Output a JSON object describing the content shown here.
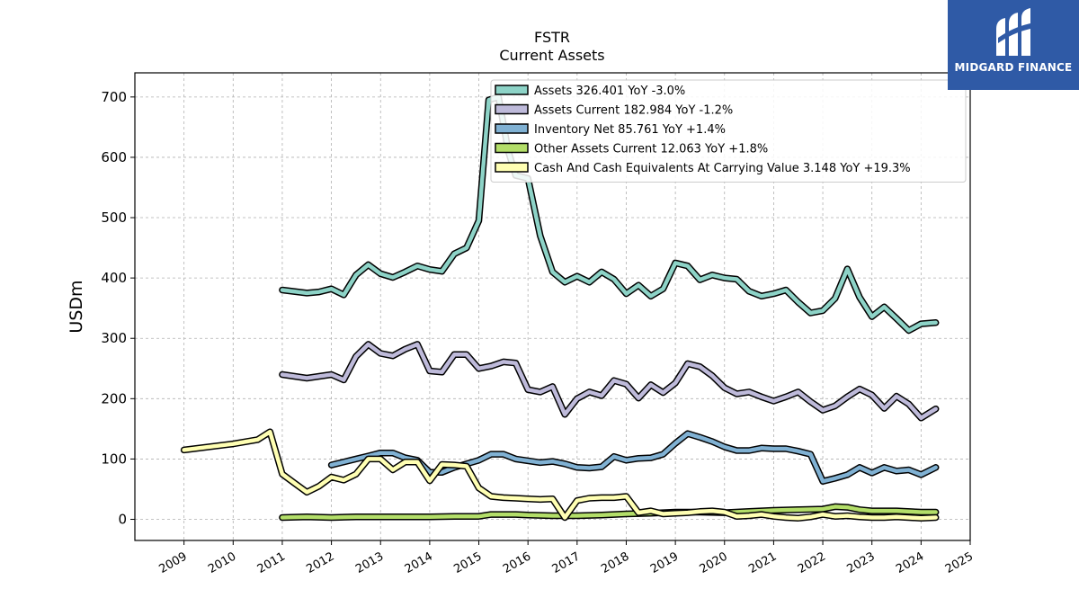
{
  "chart_data": {
    "type": "line",
    "title": "FSTR",
    "subtitle": "Current  Assets",
    "ylabel": "USDm",
    "xlabel": "",
    "ylim": [
      -35,
      740
    ],
    "xlim": [
      2008.0,
      2025.0
    ],
    "yticks": [
      0,
      100,
      200,
      300,
      400,
      500,
      600,
      700
    ],
    "xticks": [
      2009,
      2010,
      2011,
      2012,
      2013,
      2014,
      2015,
      2016,
      2017,
      2018,
      2019,
      2020,
      2021,
      2022,
      2023,
      2024,
      2025
    ],
    "grid": true,
    "legend_position": "top-right",
    "series": [
      {
        "name": "Assets",
        "legend": "Assets  326.401 YoY -3.0%",
        "color": "#8dd3c7",
        "points": [
          [
            2011.0,
            380
          ],
          [
            2011.5,
            375
          ],
          [
            2011.75,
            377
          ],
          [
            2012.0,
            382
          ],
          [
            2012.25,
            372
          ],
          [
            2012.5,
            405
          ],
          [
            2012.75,
            422
          ],
          [
            2013.0,
            407
          ],
          [
            2013.25,
            401
          ],
          [
            2013.5,
            410
          ],
          [
            2013.75,
            420
          ],
          [
            2014.0,
            414
          ],
          [
            2014.25,
            411
          ],
          [
            2014.5,
            440
          ],
          [
            2014.75,
            450
          ],
          [
            2015.0,
            495
          ],
          [
            2015.2,
            695
          ],
          [
            2015.4,
            700
          ],
          [
            2015.6,
            610
          ],
          [
            2015.75,
            570
          ],
          [
            2016.0,
            565
          ],
          [
            2016.25,
            470
          ],
          [
            2016.5,
            410
          ],
          [
            2016.75,
            393
          ],
          [
            2017.0,
            403
          ],
          [
            2017.25,
            393
          ],
          [
            2017.5,
            410
          ],
          [
            2017.75,
            398
          ],
          [
            2018.0,
            374
          ],
          [
            2018.25,
            388
          ],
          [
            2018.5,
            370
          ],
          [
            2018.75,
            382
          ],
          [
            2019.0,
            425
          ],
          [
            2019.25,
            420
          ],
          [
            2019.5,
            397
          ],
          [
            2019.75,
            405
          ],
          [
            2020.0,
            400
          ],
          [
            2020.25,
            398
          ],
          [
            2020.5,
            378
          ],
          [
            2020.75,
            370
          ],
          [
            2021.0,
            374
          ],
          [
            2021.25,
            380
          ],
          [
            2021.5,
            360
          ],
          [
            2021.75,
            342
          ],
          [
            2022.0,
            346
          ],
          [
            2022.25,
            366
          ],
          [
            2022.5,
            415
          ],
          [
            2022.75,
            368
          ],
          [
            2023.0,
            336
          ],
          [
            2023.25,
            352
          ],
          [
            2023.5,
            333
          ],
          [
            2023.75,
            313
          ],
          [
            2024.0,
            324
          ],
          [
            2024.3,
            326
          ]
        ]
      },
      {
        "name": "Assets Current",
        "legend": "Assets Current  182.984 YoY -1.2%",
        "color": "#bebada",
        "points": [
          [
            2011.0,
            240
          ],
          [
            2011.5,
            234
          ],
          [
            2011.75,
            237
          ],
          [
            2012.0,
            240
          ],
          [
            2012.25,
            231
          ],
          [
            2012.5,
            270
          ],
          [
            2012.75,
            290
          ],
          [
            2013.0,
            275
          ],
          [
            2013.25,
            271
          ],
          [
            2013.5,
            282
          ],
          [
            2013.75,
            290
          ],
          [
            2014.0,
            246
          ],
          [
            2014.25,
            244
          ],
          [
            2014.5,
            273
          ],
          [
            2014.75,
            273
          ],
          [
            2015.0,
            250
          ],
          [
            2015.25,
            254
          ],
          [
            2015.5,
            261
          ],
          [
            2015.75,
            259
          ],
          [
            2016.0,
            215
          ],
          [
            2016.25,
            211
          ],
          [
            2016.5,
            220
          ],
          [
            2016.75,
            174
          ],
          [
            2017.0,
            200
          ],
          [
            2017.25,
            211
          ],
          [
            2017.5,
            205
          ],
          [
            2017.75,
            230
          ],
          [
            2018.0,
            224
          ],
          [
            2018.25,
            201
          ],
          [
            2018.5,
            223
          ],
          [
            2018.75,
            210
          ],
          [
            2019.0,
            226
          ],
          [
            2019.25,
            258
          ],
          [
            2019.5,
            253
          ],
          [
            2019.75,
            238
          ],
          [
            2020.0,
            218
          ],
          [
            2020.25,
            208
          ],
          [
            2020.5,
            211
          ],
          [
            2020.75,
            203
          ],
          [
            2021.0,
            196
          ],
          [
            2021.25,
            203
          ],
          [
            2021.5,
            211
          ],
          [
            2021.75,
            195
          ],
          [
            2022.0,
            181
          ],
          [
            2022.25,
            188
          ],
          [
            2022.5,
            203
          ],
          [
            2022.75,
            216
          ],
          [
            2023.0,
            206
          ],
          [
            2023.25,
            184
          ],
          [
            2023.5,
            204
          ],
          [
            2023.75,
            191
          ],
          [
            2024.0,
            168
          ],
          [
            2024.3,
            183
          ]
        ]
      },
      {
        "name": "Inventory Net",
        "legend": "Inventory Net  85.761 YoY +1.4%",
        "color": "#80b1d3",
        "points": [
          [
            2012.0,
            90
          ],
          [
            2012.5,
            100
          ],
          [
            2012.75,
            105
          ],
          [
            2013.0,
            110
          ],
          [
            2013.25,
            110
          ],
          [
            2013.5,
            102
          ],
          [
            2013.75,
            98
          ],
          [
            2014.0,
            78
          ],
          [
            2014.25,
            78
          ],
          [
            2014.5,
            86
          ],
          [
            2014.75,
            92
          ],
          [
            2015.0,
            98
          ],
          [
            2015.25,
            108
          ],
          [
            2015.5,
            108
          ],
          [
            2015.75,
            100
          ],
          [
            2016.0,
            97
          ],
          [
            2016.25,
            94
          ],
          [
            2016.5,
            96
          ],
          [
            2016.75,
            92
          ],
          [
            2017.0,
            86
          ],
          [
            2017.25,
            85
          ],
          [
            2017.5,
            87
          ],
          [
            2017.75,
            104
          ],
          [
            2018.0,
            98
          ],
          [
            2018.25,
            101
          ],
          [
            2018.5,
            102
          ],
          [
            2018.75,
            108
          ],
          [
            2019.0,
            126
          ],
          [
            2019.25,
            142
          ],
          [
            2019.5,
            136
          ],
          [
            2019.75,
            129
          ],
          [
            2020.0,
            120
          ],
          [
            2020.25,
            114
          ],
          [
            2020.5,
            114
          ],
          [
            2020.75,
            118
          ],
          [
            2021.0,
            117
          ],
          [
            2021.25,
            117
          ],
          [
            2021.5,
            113
          ],
          [
            2021.75,
            108
          ],
          [
            2022.0,
            63
          ],
          [
            2022.25,
            68
          ],
          [
            2022.5,
            74
          ],
          [
            2022.75,
            86
          ],
          [
            2023.0,
            77
          ],
          [
            2023.25,
            86
          ],
          [
            2023.5,
            80
          ],
          [
            2023.75,
            82
          ],
          [
            2024.0,
            74
          ],
          [
            2024.3,
            86
          ]
        ]
      },
      {
        "name": "Other Assets Current",
        "legend": "Other Assets Current  12.063 YoY +1.8%",
        "color": "#b3de69",
        "points": [
          [
            2011.0,
            3
          ],
          [
            2011.5,
            4
          ],
          [
            2012.0,
            3
          ],
          [
            2012.5,
            4
          ],
          [
            2013.0,
            4
          ],
          [
            2013.5,
            4
          ],
          [
            2014.0,
            4
          ],
          [
            2014.5,
            5
          ],
          [
            2015.0,
            5
          ],
          [
            2015.25,
            8
          ],
          [
            2015.75,
            8
          ],
          [
            2016.0,
            7
          ],
          [
            2016.5,
            6
          ],
          [
            2017.0,
            6
          ],
          [
            2017.5,
            7
          ],
          [
            2018.0,
            9
          ],
          [
            2018.5,
            10
          ],
          [
            2019.0,
            12
          ],
          [
            2019.5,
            12
          ],
          [
            2020.0,
            11
          ],
          [
            2020.5,
            13
          ],
          [
            2021.0,
            15
          ],
          [
            2021.5,
            16
          ],
          [
            2022.0,
            17
          ],
          [
            2022.25,
            21
          ],
          [
            2022.5,
            20
          ],
          [
            2022.75,
            16
          ],
          [
            2023.0,
            14
          ],
          [
            2023.5,
            14
          ],
          [
            2024.0,
            12
          ],
          [
            2024.3,
            12
          ]
        ]
      },
      {
        "name": "Cash And Cash Equivalents At Carrying Value",
        "legend": "Cash And Cash Equivalents At Carrying Value  3.148 YoY +19.3%",
        "color": "#ffffb3",
        "points": [
          [
            2009.0,
            115
          ],
          [
            2010.0,
            125
          ],
          [
            2010.5,
            132
          ],
          [
            2010.75,
            145
          ],
          [
            2011.0,
            75
          ],
          [
            2011.25,
            60
          ],
          [
            2011.5,
            45
          ],
          [
            2011.75,
            55
          ],
          [
            2012.0,
            70
          ],
          [
            2012.25,
            65
          ],
          [
            2012.5,
            75
          ],
          [
            2012.75,
            100
          ],
          [
            2013.0,
            100
          ],
          [
            2013.25,
            82
          ],
          [
            2013.5,
            95
          ],
          [
            2013.75,
            95
          ],
          [
            2014.0,
            64
          ],
          [
            2014.25,
            91
          ],
          [
            2014.5,
            90
          ],
          [
            2014.75,
            88
          ],
          [
            2015.0,
            52
          ],
          [
            2015.25,
            38
          ],
          [
            2015.5,
            36
          ],
          [
            2015.75,
            35
          ],
          [
            2016.0,
            34
          ],
          [
            2016.25,
            33
          ],
          [
            2016.5,
            34
          ],
          [
            2016.75,
            3
          ],
          [
            2017.0,
            31
          ],
          [
            2017.25,
            35
          ],
          [
            2017.5,
            36
          ],
          [
            2017.75,
            36
          ],
          [
            2018.0,
            38
          ],
          [
            2018.25,
            11
          ],
          [
            2018.5,
            14
          ],
          [
            2018.75,
            9
          ],
          [
            2019.0,
            10
          ],
          [
            2019.25,
            11
          ],
          [
            2019.5,
            13
          ],
          [
            2019.75,
            14
          ],
          [
            2020.0,
            12
          ],
          [
            2020.25,
            5
          ],
          [
            2020.5,
            6
          ],
          [
            2020.75,
            8
          ],
          [
            2021.0,
            5
          ],
          [
            2021.25,
            3
          ],
          [
            2021.5,
            2
          ],
          [
            2021.75,
            4
          ],
          [
            2022.0,
            8
          ],
          [
            2022.25,
            5
          ],
          [
            2022.5,
            6
          ],
          [
            2022.75,
            4
          ],
          [
            2023.0,
            3
          ],
          [
            2023.25,
            3
          ],
          [
            2023.5,
            4
          ],
          [
            2023.75,
            3
          ],
          [
            2024.0,
            2
          ],
          [
            2024.3,
            3
          ]
        ]
      }
    ]
  },
  "branding": {
    "logo_text": "MIDGARD FINANCE",
    "logo_bg": "#2f5aa6"
  }
}
